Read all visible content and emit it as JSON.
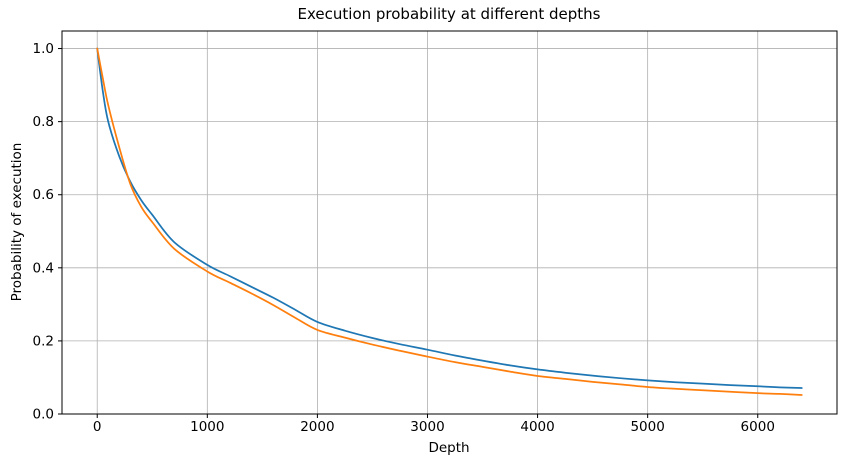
{
  "chart_data": {
    "type": "line",
    "title": "Execution probability at different depths",
    "xlabel": "Depth",
    "ylabel": "Probability of execution",
    "grid": true,
    "legend_position": "none",
    "xlim": [
      -320,
      6720
    ],
    "ylim": [
      0,
      1.048
    ],
    "x_ticks": [
      0,
      1000,
      2000,
      3000,
      4000,
      5000,
      6000
    ],
    "x_tick_labels": [
      "0",
      "1000",
      "2000",
      "3000",
      "4000",
      "5000",
      "6000"
    ],
    "y_ticks": [
      0.0,
      0.2,
      0.4,
      0.6,
      0.8,
      1.0
    ],
    "y_tick_labels": [
      "0.0",
      "0.2",
      "0.4",
      "0.6",
      "0.8",
      "1.0"
    ],
    "x": [
      0,
      50,
      100,
      200,
      300,
      400,
      500,
      700,
      1000,
      1200,
      1400,
      1600,
      1800,
      2000,
      2250,
      2500,
      2750,
      3000,
      3250,
      3500,
      3750,
      4000,
      4250,
      4500,
      4750,
      5000,
      5250,
      5500,
      5750,
      6000,
      6200,
      6400
    ],
    "series": [
      {
        "name": "series-1-blue",
        "color": "#1f77b4",
        "values": [
          1.0,
          0.885,
          0.8,
          0.705,
          0.636,
          0.585,
          0.545,
          0.47,
          0.408,
          0.378,
          0.348,
          0.318,
          0.285,
          0.252,
          0.228,
          0.208,
          0.191,
          0.176,
          0.16,
          0.146,
          0.133,
          0.122,
          0.113,
          0.105,
          0.098,
          0.092,
          0.087,
          0.083,
          0.079,
          0.076,
          0.073,
          0.071
        ]
      },
      {
        "name": "series-2-orange",
        "color": "#ff7f0e",
        "values": [
          1.0,
          0.92,
          0.845,
          0.73,
          0.63,
          0.567,
          0.525,
          0.452,
          0.39,
          0.36,
          0.33,
          0.298,
          0.263,
          0.23,
          0.209,
          0.19,
          0.173,
          0.157,
          0.142,
          0.129,
          0.116,
          0.104,
          0.096,
          0.088,
          0.081,
          0.074,
          0.069,
          0.065,
          0.061,
          0.057,
          0.055,
          0.052
        ]
      }
    ]
  },
  "colors": {
    "background": "#ffffff",
    "grid": "#b0b0b0",
    "spine": "#000000",
    "text": "#000000"
  }
}
